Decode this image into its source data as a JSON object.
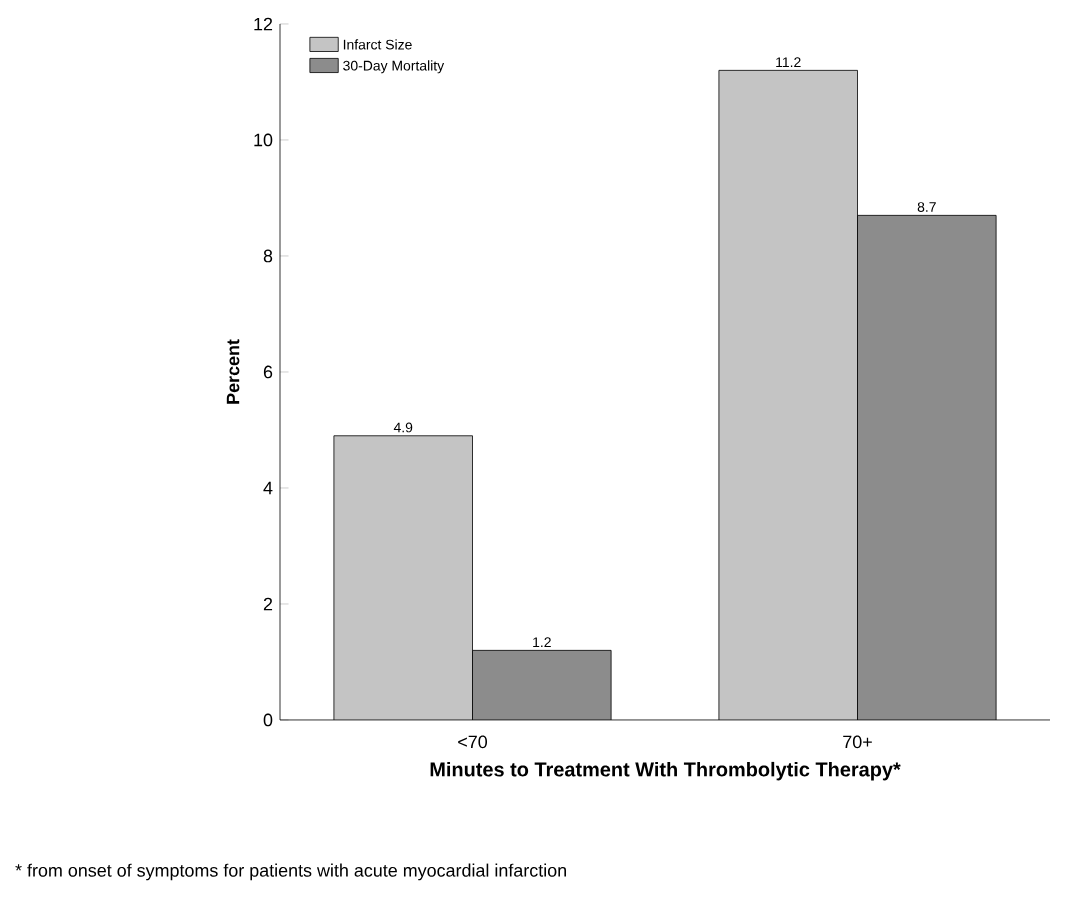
{
  "chart_data": {
    "type": "bar",
    "xlabel": "Minutes to Treatment With Thrombolytic Therapy*",
    "ylabel": "Percent",
    "categories": [
      "<70",
      "70+"
    ],
    "series": [
      {
        "name": "Infarct Size",
        "color": "#c4c4c4",
        "values": [
          4.9,
          11.2
        ]
      },
      {
        "name": "30-Day Mortality",
        "color": "#8c8c8c",
        "values": [
          1.2,
          8.7
        ]
      }
    ],
    "ylim": [
      0,
      12
    ],
    "yticks": [
      0,
      2,
      4,
      6,
      8,
      10,
      12
    ],
    "data_labels": true,
    "legend": "top left",
    "grid": false,
    "annotations": [
      "* from onset of symptoms for patients with acute myocardial infarction"
    ]
  }
}
